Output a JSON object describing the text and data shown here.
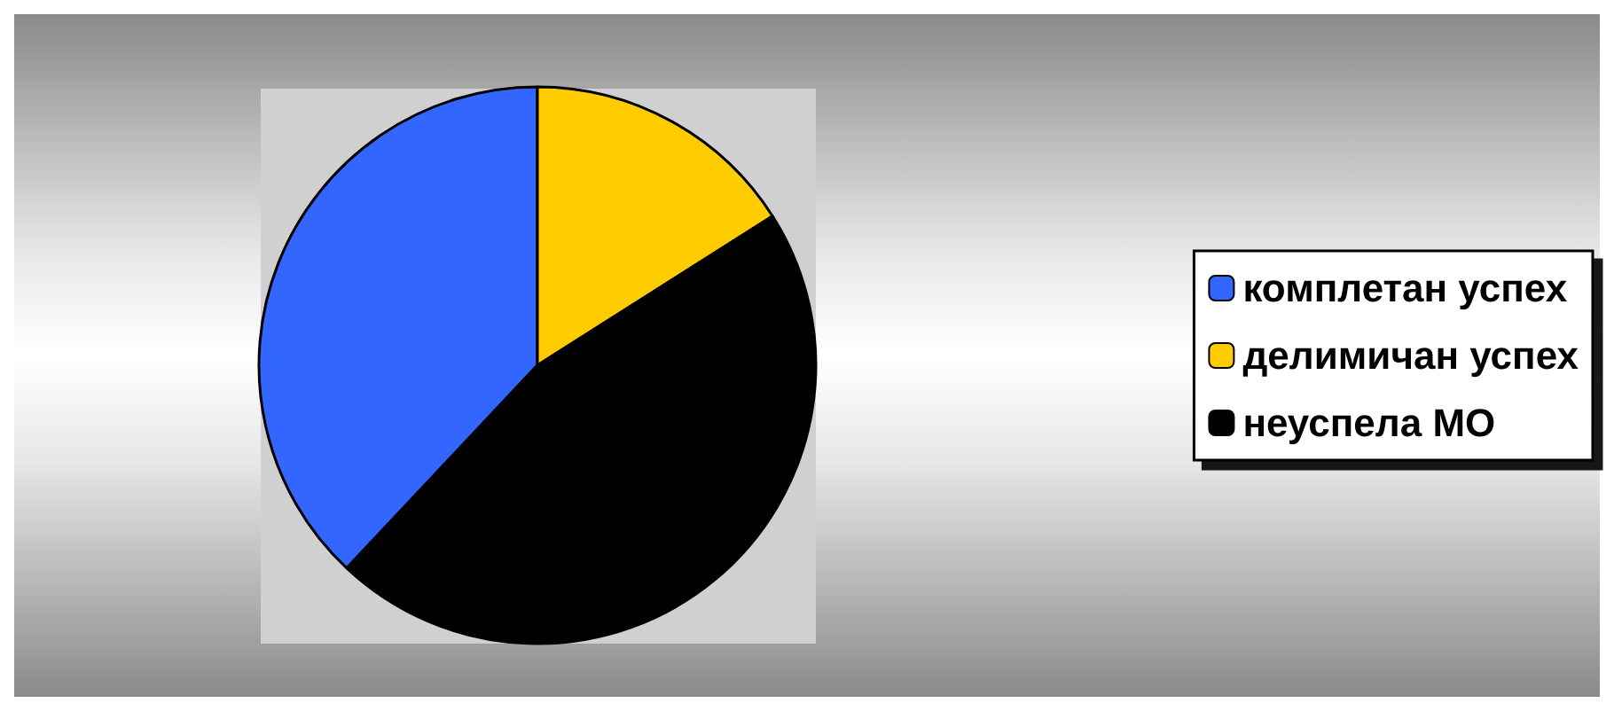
{
  "chart_data": {
    "type": "pie",
    "categories": [
      "комплетан успех",
      "делимичан успех",
      "неуспела МО"
    ],
    "values": [
      38,
      16,
      46
    ],
    "colors": [
      "#3366ff",
      "#ffcc00",
      "#000000"
    ],
    "legend": "right"
  }
}
